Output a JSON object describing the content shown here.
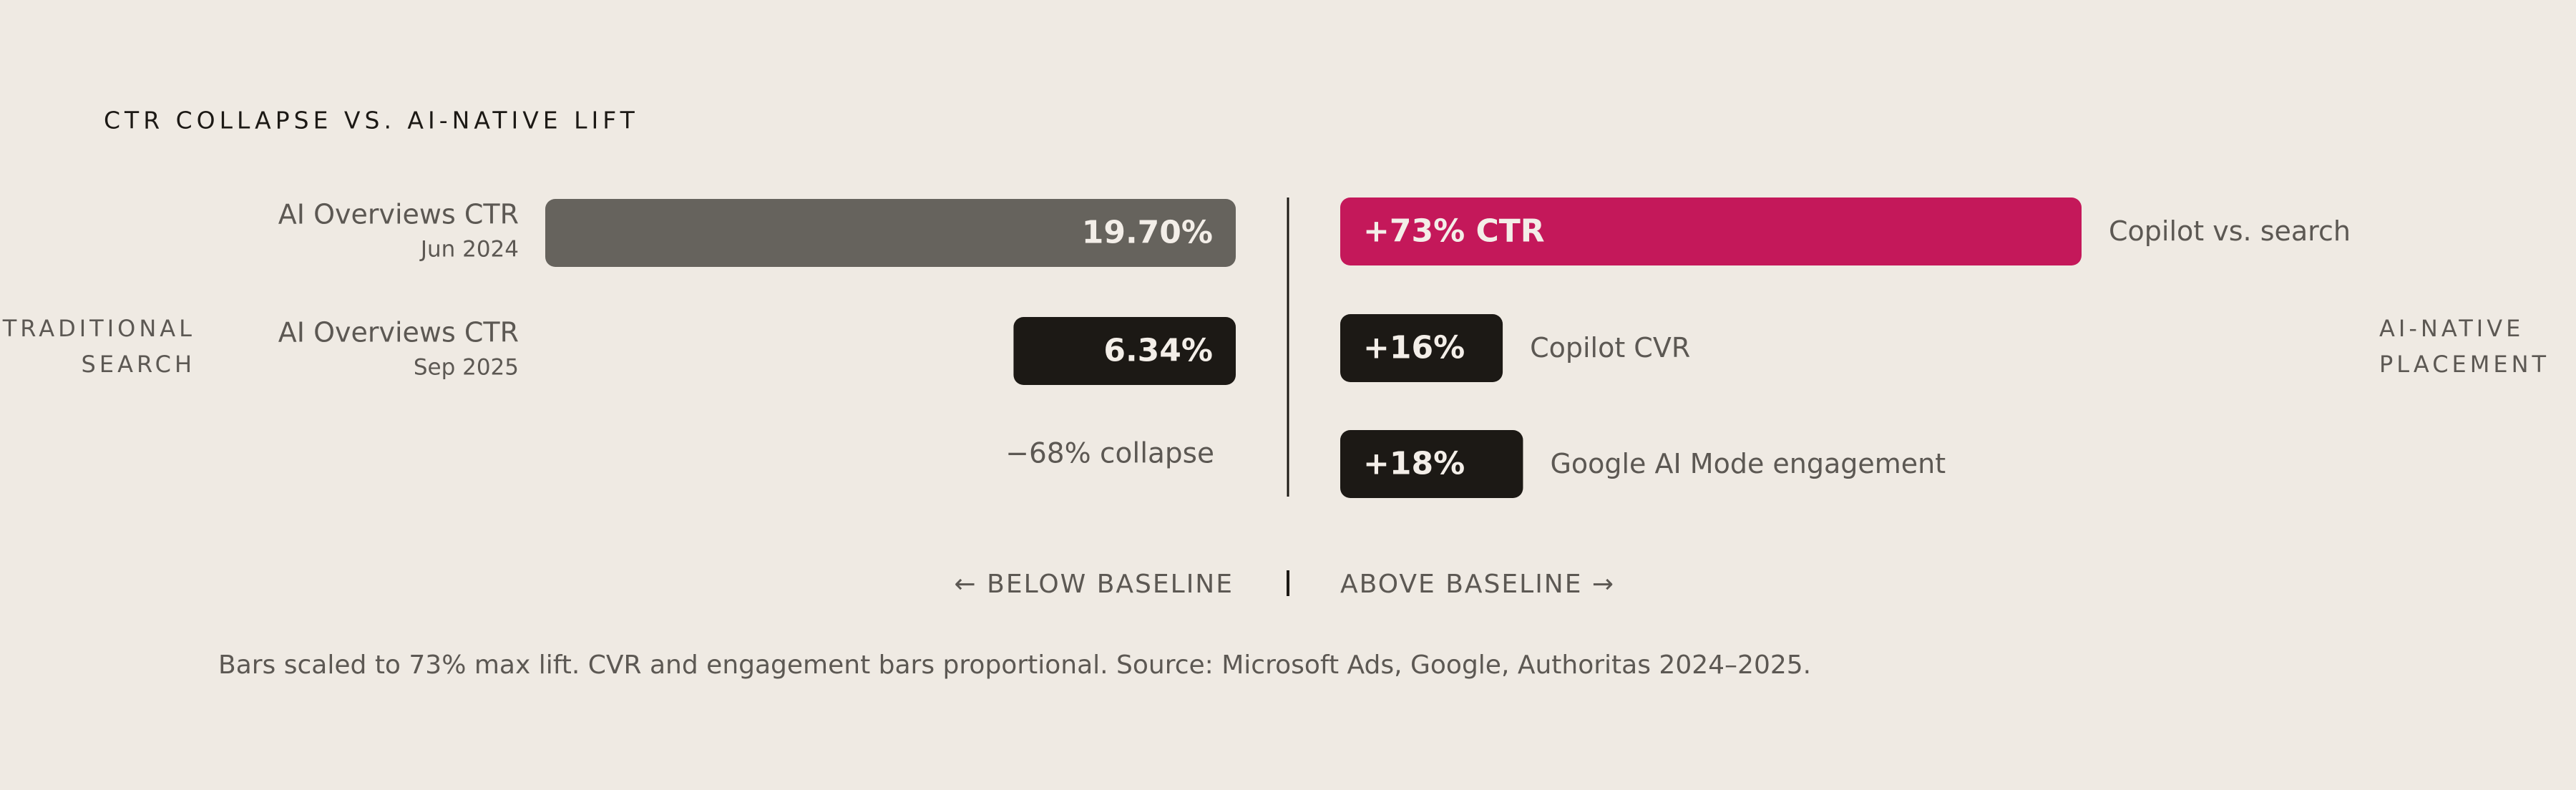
{
  "chart_data": {
    "type": "diverging-bar",
    "title": "CTR COLLAPSE VS. AI-NATIVE LIFT",
    "left_group": "TRADITIONAL SEARCH",
    "right_group": "AI-NATIVE PLACEMENT",
    "left_axis_label": "← BELOW BASELINE",
    "right_axis_label": "ABOVE BASELINE →",
    "left_bars": {
      "categories": [
        "AI Overviews CTR",
        "AI Overviews CTR"
      ],
      "dates": [
        "Jun 2024",
        "Sep 2025"
      ],
      "values": [
        19.7,
        6.34
      ],
      "value_labels": [
        "19.70%",
        "6.34%"
      ],
      "colors": [
        "#66635d",
        "#1c1915"
      ],
      "xlim": [
        0,
        19.7
      ]
    },
    "left_annotation": "−68% collapse",
    "right_bars": {
      "categories": [
        "Copilot vs. search",
        "Copilot CVR",
        "Google AI Mode engagement"
      ],
      "values": [
        73,
        16,
        18
      ],
      "value_labels": [
        "+73% CTR",
        "+16%",
        "+18%"
      ],
      "colors": [
        "#c4185a",
        "#1c1915",
        "#1c1915"
      ],
      "xlim": [
        0,
        73
      ]
    },
    "note": "Bars scaled to 73% max lift. CVR and engagement bars proportional. Source: Microsoft Ads, Google, Authoritas 2024–2025."
  }
}
